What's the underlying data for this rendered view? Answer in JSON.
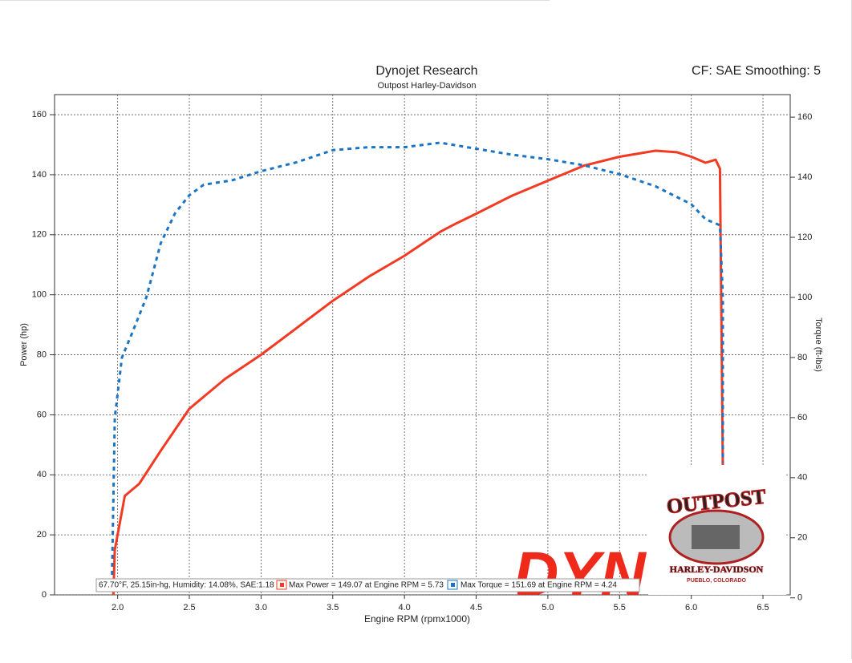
{
  "chart_data": {
    "type": "line",
    "title": "Dynojet Research",
    "subtitle": "Outpost Harley-Davidson",
    "settings_label": "CF: SAE Smoothing: 5",
    "xlabel": "Engine RPM (rpmx1000)",
    "ylabel": "Power (hp)",
    "y2label": "Torque (ft-lbs)",
    "conditions": "67.70°F, 25.15in-hg, Humidity: 14.08%, SAE:1.18",
    "logo": {
      "name": "OUTPOST",
      "brand": "HARLEY-DAVIDSON",
      "location": "PUEBLO, COLORADO"
    },
    "watermark": "DYN",
    "xlim": [
      1.56,
      6.69
    ],
    "ylim": [
      0,
      166.7
    ],
    "y2lim": [
      1,
      167.5
    ],
    "xticks": [
      {
        "value": 2.0,
        "label": "2.0"
      },
      2.5,
      {
        "value": 3.0,
        "label": "3.0"
      },
      3.5,
      {
        "value": 4.0,
        "label": "4.0"
      },
      4.5,
      {
        "value": 5.0,
        "label": "5.0"
      },
      5.5,
      {
        "value": 6.0,
        "label": "6.0"
      },
      6.5
    ],
    "yticks": [
      0,
      20,
      40,
      60,
      80,
      100,
      120,
      140,
      160
    ],
    "y2ticks": [
      0,
      20,
      40,
      60,
      80,
      100,
      120,
      140,
      160
    ],
    "grid": true,
    "series": [
      {
        "name": "Max Power = 149.07 at Engine RPM = 5.73",
        "color": "#f23a22",
        "axis": "y",
        "dashed": false,
        "x": [
          1.97,
          1.98,
          2.05,
          2.15,
          2.3,
          2.5,
          2.75,
          3.0,
          3.25,
          3.5,
          3.75,
          4.0,
          4.25,
          4.35,
          4.5,
          4.75,
          5.0,
          5.25,
          5.5,
          5.75,
          5.9,
          6.0,
          6.1,
          6.17,
          6.2,
          6.22
        ],
        "values": [
          0,
          15,
          33,
          37,
          48,
          62,
          72,
          80,
          89,
          98,
          106,
          113,
          121,
          123.5,
          127,
          133,
          138,
          143,
          146,
          148,
          147.5,
          146,
          144,
          145,
          142,
          42
        ]
      },
      {
        "name": "Max Torque = 151.69 at Engine RPM = 4.24",
        "color": "#1a74c4",
        "axis": "y2",
        "dashed": true,
        "x": [
          1.96,
          1.98,
          2.03,
          2.1,
          2.2,
          2.3,
          2.4,
          2.5,
          2.6,
          2.8,
          3.0,
          3.25,
          3.5,
          3.75,
          4.0,
          4.25,
          4.5,
          4.75,
          5.0,
          5.25,
          5.5,
          5.75,
          6.0,
          6.1,
          6.2,
          6.22,
          6.22
        ],
        "values": [
          5,
          60,
          80,
          88,
          100,
          118,
          128,
          134,
          137.5,
          139,
          142,
          145,
          149,
          150,
          150,
          151.5,
          149.5,
          147.5,
          146,
          144,
          141,
          137,
          131,
          126,
          124,
          100,
          45
        ]
      }
    ]
  }
}
